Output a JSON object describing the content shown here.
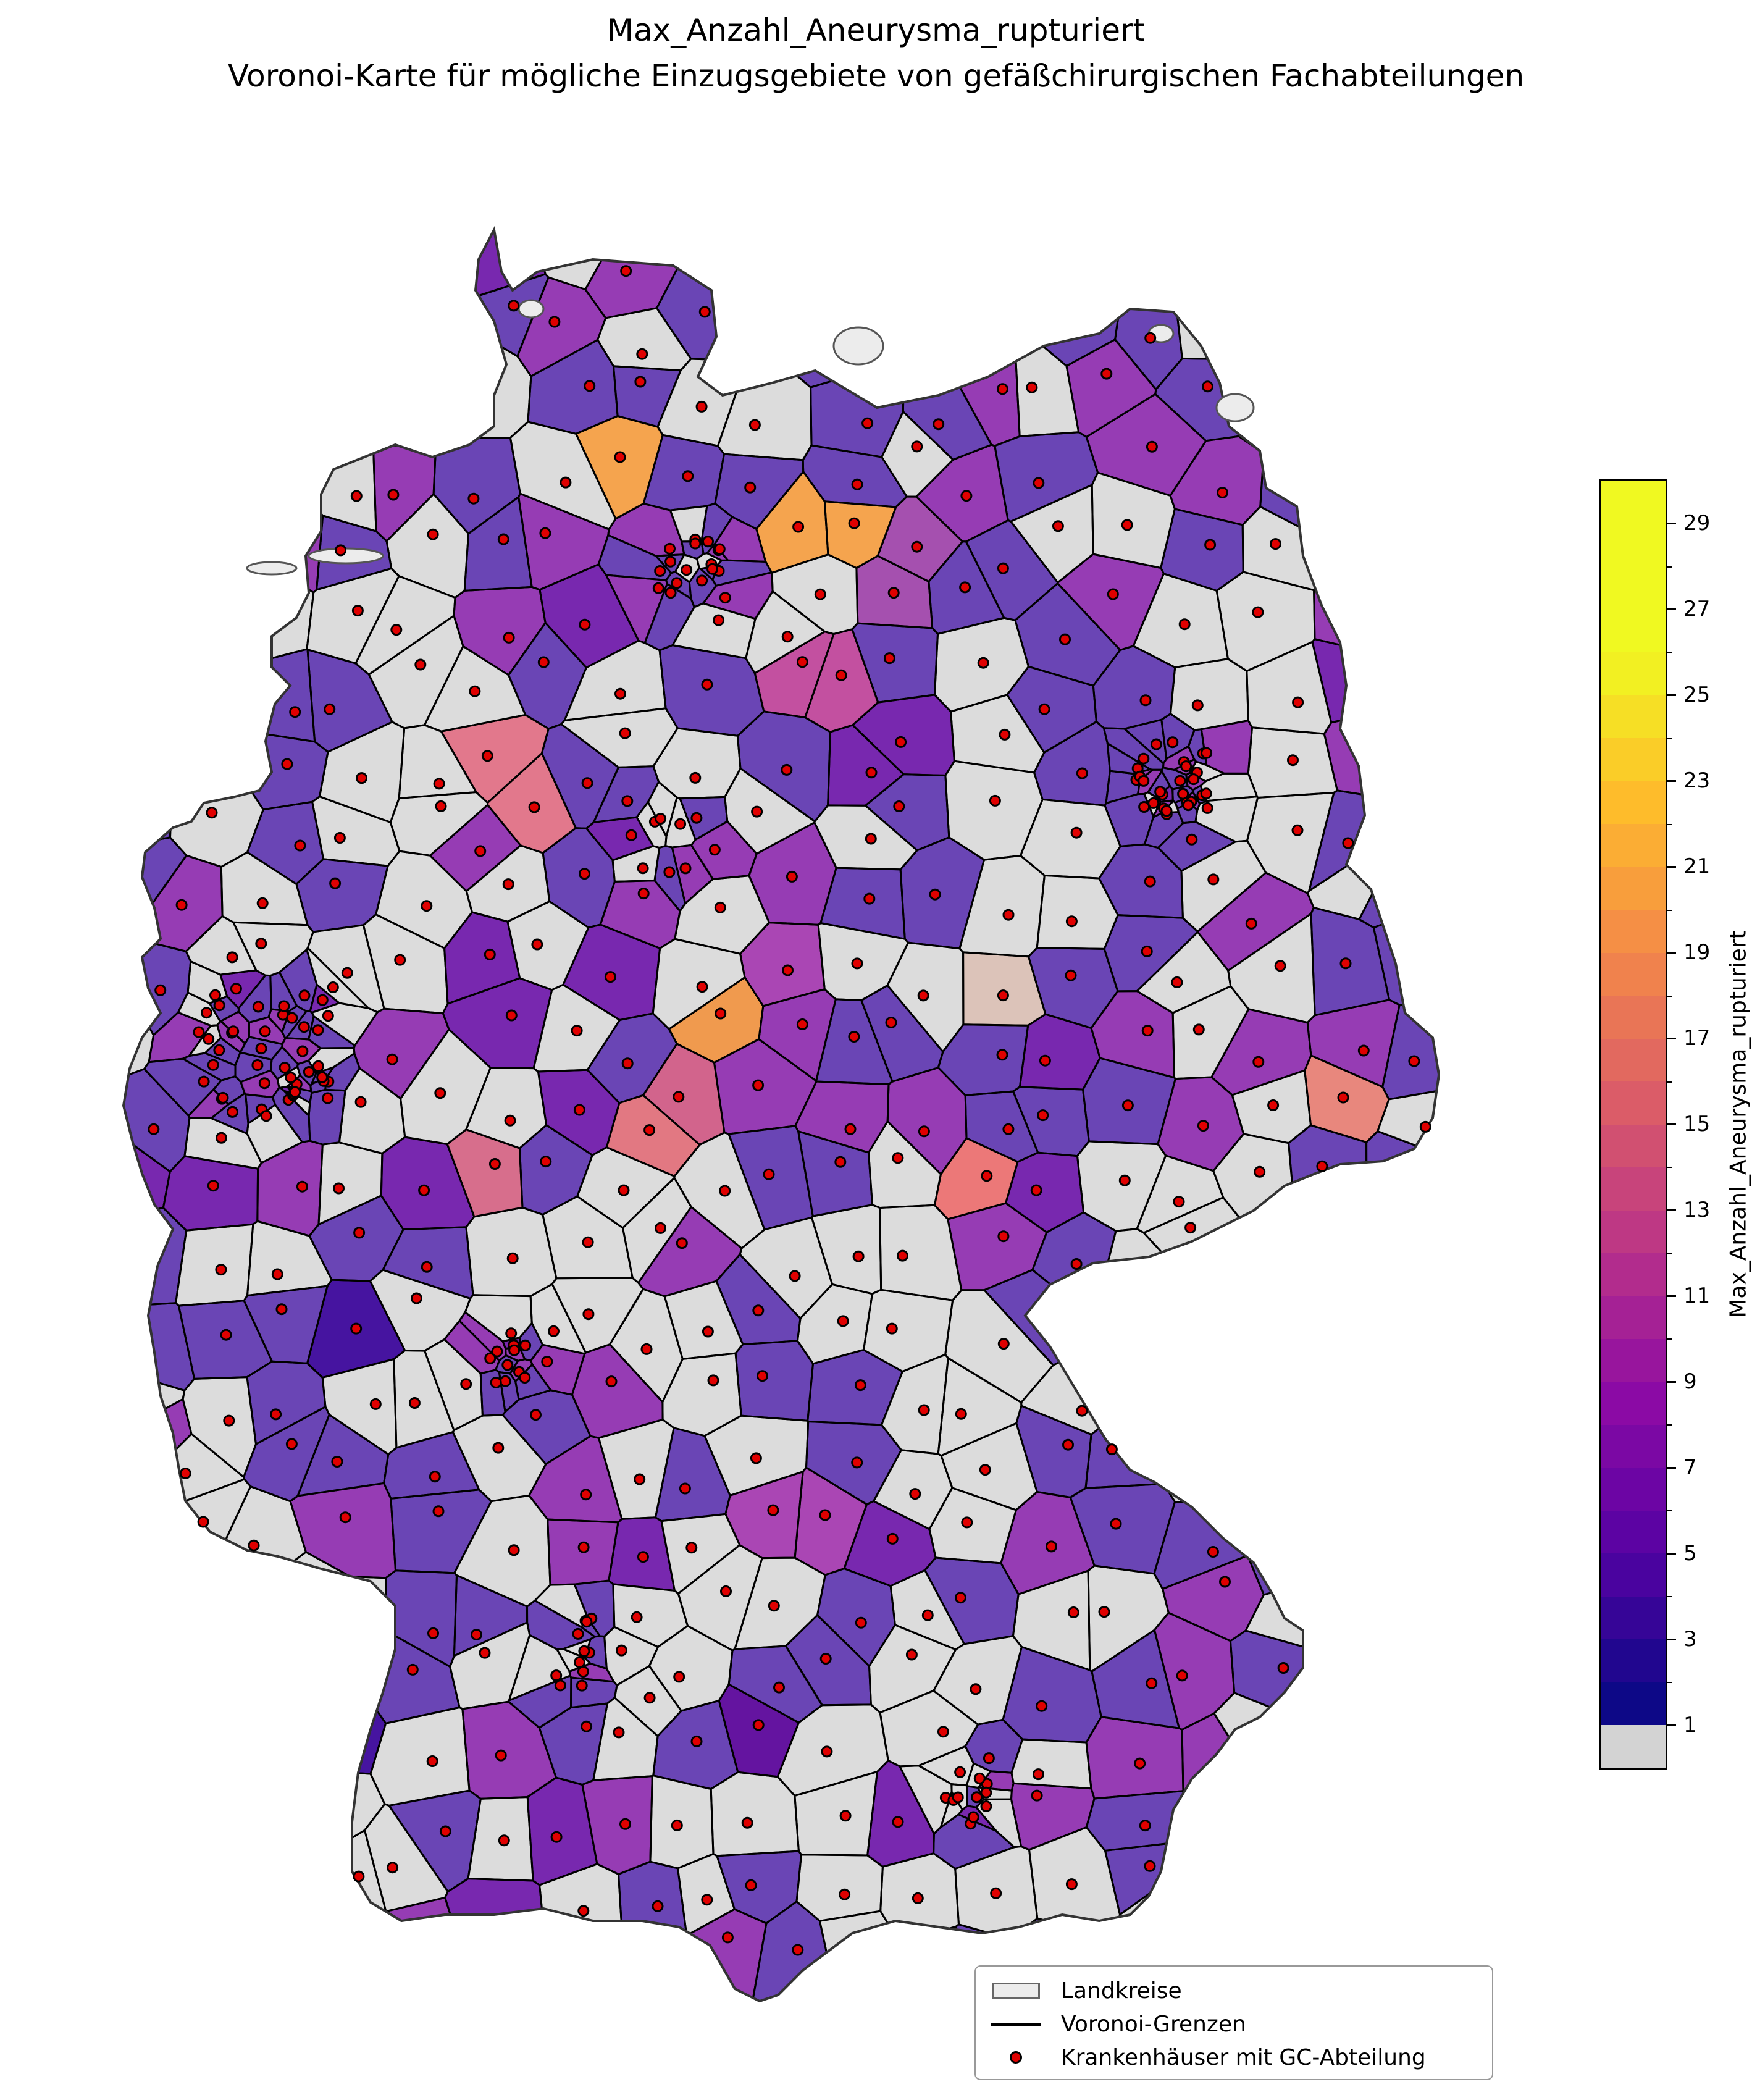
{
  "title_line1": "Max_Anzahl_Aneurysma_rupturiert",
  "title_line2": "Voronoi-Karte für mögliche Einzugsgebiete von gefäßchirurgischen Fachabteilungen",
  "colorbar": {
    "label": "Max_Anzahl_Aneurysma_rupturiert",
    "range": [
      0,
      30
    ],
    "tick_labels": [
      "1",
      "3",
      "5",
      "7",
      "9",
      "11",
      "13",
      "15",
      "17",
      "19",
      "21",
      "23",
      "25",
      "27",
      "29"
    ],
    "no_data_color": "#d3d3d3",
    "colormap": "plasma"
  },
  "legend": {
    "position": "bottom-right",
    "items": [
      {
        "label": "Landkreise",
        "symbol": "patch"
      },
      {
        "label": "Voronoi-Grenzen",
        "symbol": "line"
      },
      {
        "label": "Krankenhäuser mit GC-Abteilung",
        "symbol": "dot"
      }
    ]
  },
  "colors": {
    "dot_fill": "#e00000",
    "voronoi_border": "#000000",
    "landkreis_border": "#888888",
    "common_region": "#6a45b5",
    "no_data_region": "#dcdcdc"
  }
}
